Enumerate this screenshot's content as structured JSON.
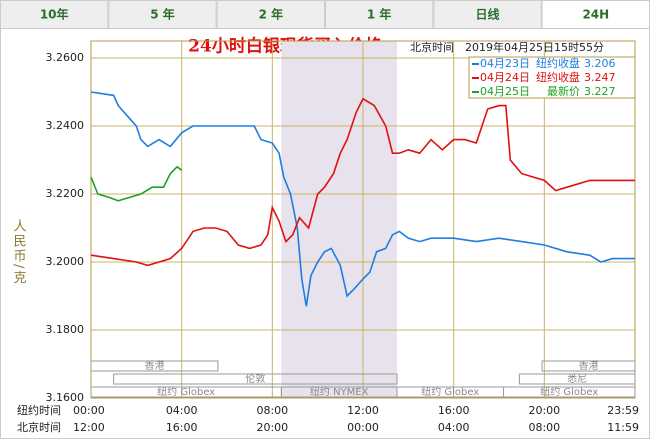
{
  "tabs": [
    "10年",
    "5 年",
    "2 年",
    "1 年",
    "日线",
    "24H"
  ],
  "active_tab": 5,
  "chart_data": {
    "type": "line",
    "title": "24小时白银现货买入价格",
    "subtitle": "北京时间　2019年04月25日15时55分",
    "y_label": "人民币/克",
    "x_row_labels": [
      "纽约时间",
      "北京时间"
    ],
    "ylim": [
      3.16,
      3.265
    ],
    "yticks": [
      {
        "value": 3.16,
        "label": "3.1600"
      },
      {
        "value": 3.18,
        "label": "3.1800"
      },
      {
        "value": 3.2,
        "label": "3.2000"
      },
      {
        "value": 3.22,
        "label": "3.2200"
      },
      {
        "value": 3.24,
        "label": "3.2400"
      },
      {
        "value": 3.26,
        "label": "3.2600"
      }
    ],
    "xlim": [
      0,
      24
    ],
    "xticks": [
      {
        "value": 0,
        "label": "00:00"
      },
      {
        "value": 4,
        "label": "04:00"
      },
      {
        "value": 8,
        "label": "08:00"
      },
      {
        "value": 12,
        "label": "12:00"
      },
      {
        "value": 16,
        "label": "16:00"
      },
      {
        "value": 20,
        "label": "20:00"
      },
      {
        "value": 24,
        "label": "23:59"
      }
    ],
    "x2ticks": [
      {
        "value": 0,
        "label": "12:00"
      },
      {
        "value": 4,
        "label": "16:00"
      },
      {
        "value": 8,
        "label": "20:00"
      },
      {
        "value": 12,
        "label": "00:00"
      },
      {
        "value": 16,
        "label": "04:00"
      },
      {
        "value": 20,
        "label": "08:00"
      },
      {
        "value": 24,
        "label": "11:59"
      }
    ],
    "grid": true,
    "highlight": [
      8.4,
      13.5
    ],
    "sessions": [
      {
        "label": "香港",
        "lane": 0,
        "start": 0,
        "end": 5.6
      },
      {
        "label": "香港",
        "lane": 0,
        "start": 19.9,
        "end": 24
      },
      {
        "label": "伦敦",
        "lane": 1,
        "start": 1,
        "end": 13.5
      },
      {
        "label": "悉尼",
        "lane": 1,
        "start": 18.9,
        "end": 24
      },
      {
        "label": "纽约 Globex",
        "lane": 2,
        "start": 0,
        "end": 8.4
      },
      {
        "label": "纽约 NYMEX",
        "lane": 2,
        "start": 8.4,
        "end": 13.5
      },
      {
        "label": "纽约 Globex",
        "lane": 2,
        "start": 13.5,
        "end": 18.2
      },
      {
        "label": "纽约 Globex",
        "lane": 2,
        "start": 18.2,
        "end": 24
      }
    ],
    "series": [
      {
        "name": "04月23日",
        "note": "纽约收盘",
        "last": 3.206,
        "color": "#1e7ee0",
        "x": [
          0,
          1,
          1.2,
          2,
          2.2,
          2.5,
          3,
          3.5,
          4,
          4.5,
          7.2,
          7.5,
          8,
          8.3,
          8.5,
          8.8,
          9.1,
          9.3,
          9.5,
          9.7,
          10,
          10.3,
          10.6,
          11,
          11.3,
          11.6,
          12,
          12.3,
          12.6,
          13,
          13.3,
          13.6,
          14,
          14.5,
          15,
          16,
          17,
          18,
          19,
          20,
          21,
          22,
          22.5,
          23,
          24
        ],
        "values": [
          3.25,
          3.249,
          3.246,
          3.24,
          3.236,
          3.234,
          3.236,
          3.234,
          3.238,
          3.24,
          3.24,
          3.236,
          3.235,
          3.232,
          3.225,
          3.22,
          3.21,
          3.195,
          3.187,
          3.196,
          3.2,
          3.203,
          3.204,
          3.199,
          3.19,
          3.192,
          3.195,
          3.197,
          3.203,
          3.204,
          3.208,
          3.209,
          3.207,
          3.206,
          3.207,
          3.207,
          3.206,
          3.207,
          3.206,
          3.205,
          3.203,
          3.202,
          3.2,
          3.201,
          3.201
        ]
      },
      {
        "name": "04月24日",
        "note": "纽约收盘",
        "last": 3.247,
        "color": "#e01010",
        "x": [
          0,
          1,
          2,
          2.5,
          3,
          3.5,
          4,
          4.5,
          5,
          5.5,
          6,
          6.5,
          7,
          7.5,
          7.8,
          8,
          8.3,
          8.6,
          8.9,
          9.2,
          9.6,
          10,
          10.3,
          10.7,
          11,
          11.3,
          11.7,
          12,
          12.5,
          13,
          13.3,
          13.6,
          14,
          14.5,
          15,
          15.5,
          16,
          16.5,
          17,
          17.5,
          18,
          18.3,
          18.5,
          19,
          19.5,
          20,
          20.5,
          21,
          21.5,
          22,
          22.5,
          23,
          24
        ],
        "values": [
          3.202,
          3.201,
          3.2,
          3.199,
          3.2,
          3.201,
          3.204,
          3.209,
          3.21,
          3.21,
          3.209,
          3.205,
          3.204,
          3.205,
          3.208,
          3.216,
          3.212,
          3.206,
          3.208,
          3.213,
          3.21,
          3.22,
          3.222,
          3.226,
          3.232,
          3.236,
          3.244,
          3.248,
          3.246,
          3.24,
          3.232,
          3.232,
          3.233,
          3.232,
          3.236,
          3.233,
          3.236,
          3.236,
          3.235,
          3.245,
          3.246,
          3.246,
          3.23,
          3.226,
          3.225,
          3.224,
          3.221,
          3.222,
          3.223,
          3.224,
          3.224,
          3.224,
          3.224
        ]
      },
      {
        "name": "04月25日",
        "note": "最新价",
        "last": 3.227,
        "color": "#20a020",
        "x": [
          0,
          0.3,
          0.8,
          1.2,
          1.7,
          2.2,
          2.7,
          3.2,
          3.5,
          3.8,
          4
        ],
        "values": [
          3.225,
          3.22,
          3.219,
          3.218,
          3.219,
          3.22,
          3.222,
          3.222,
          3.226,
          3.228,
          3.227
        ]
      }
    ]
  }
}
